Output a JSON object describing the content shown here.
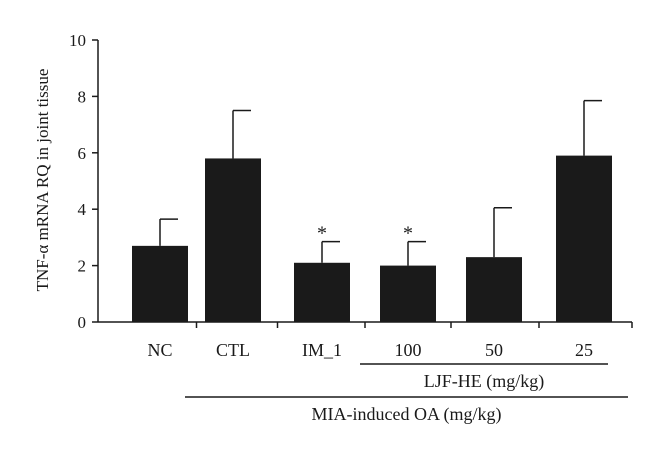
{
  "chart_data": {
    "type": "bar",
    "title": "",
    "ylabel": "TNF-α mRNA RQ in joint tissue",
    "xlabel": "",
    "ylim": [
      0,
      10
    ],
    "yticks": [
      "0",
      "2",
      "4",
      "6",
      "8",
      "10"
    ],
    "categories": [
      "NC",
      "CTL",
      "IM_1",
      "100",
      "50",
      "25"
    ],
    "values": [
      2.7,
      5.8,
      2.1,
      2.0,
      2.3,
      5.9
    ],
    "errors": [
      0.95,
      1.7,
      0.75,
      0.85,
      1.75,
      1.95
    ],
    "annotations": [
      "",
      "",
      "*",
      "*",
      "",
      ""
    ],
    "bar_color": "#1a1a1a",
    "grid": false,
    "legend": "none",
    "groups": [
      {
        "label": "LJF-HE (mg/kg)",
        "categories": [
          "100",
          "50",
          "25"
        ]
      },
      {
        "label": "MIA-induced OA (mg/kg)",
        "categories": [
          "CTL",
          "IM_1",
          "100",
          "50",
          "25"
        ]
      }
    ]
  }
}
